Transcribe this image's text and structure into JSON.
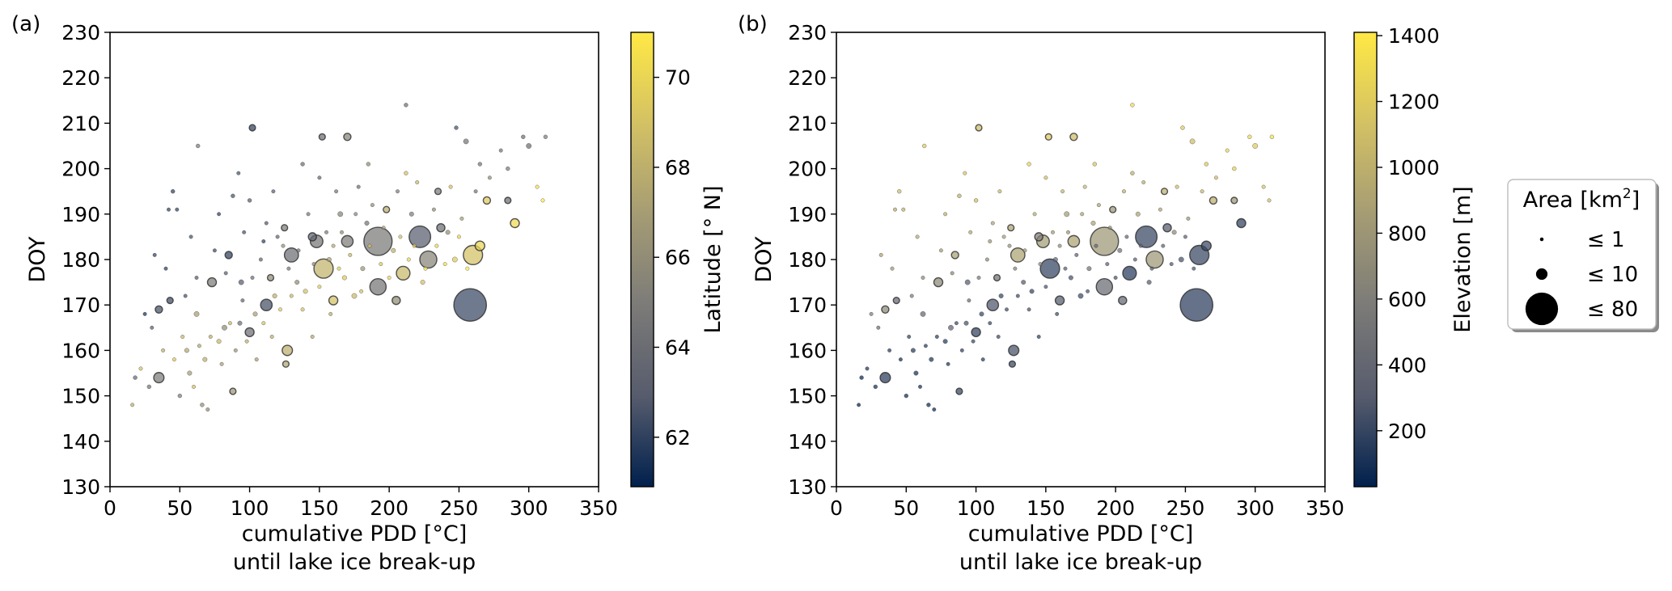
{
  "figure": {
    "legend": {
      "title_main": "Area [km",
      "title_sup": "2",
      "title_end": "]",
      "items": [
        {
          "label": "≤ 1",
          "area_km2": 1
        },
        {
          "label": "≤ 10",
          "area_km2": 10
        },
        {
          "label": "≤ 80",
          "area_km2": 80
        }
      ]
    }
  },
  "colors": {
    "cmap": [
      "#00204d",
      "#575c6d",
      "#7c7b78",
      "#a59c74",
      "#d3c164",
      "#ffe945"
    ],
    "point_alpha": 0.72,
    "edge": "#2b2b2b"
  },
  "chart_data": [
    {
      "panel_label": "(a)",
      "type": "scatter",
      "xlabel": "cumulative PDD [°C]",
      "xlabel2": "until lake ice break-up",
      "ylabel": "DOY",
      "xlim": [
        0,
        350
      ],
      "ylim": [
        130,
        230
      ],
      "xticks": [
        0,
        50,
        100,
        150,
        200,
        250,
        300,
        350
      ],
      "yticks": [
        130,
        140,
        150,
        160,
        170,
        180,
        190,
        200,
        210,
        220,
        230
      ],
      "color_variable": "lat",
      "colorbar": {
        "label": "Latitude [° N]",
        "min": 60.9,
        "max": 71,
        "ticks": [
          62,
          64,
          66,
          68,
          70
        ]
      },
      "grid": false
    },
    {
      "panel_label": "(b)",
      "type": "scatter",
      "xlabel": "cumulative PDD [°C]",
      "xlabel2": "until lake ice break-up",
      "ylabel": "DOY",
      "xlim": [
        0,
        350
      ],
      "ylim": [
        130,
        230
      ],
      "xticks": [
        0,
        50,
        100,
        150,
        200,
        250,
        300,
        350
      ],
      "yticks": [
        130,
        140,
        150,
        160,
        170,
        180,
        190,
        200,
        210,
        220,
        230
      ],
      "color_variable": "elev",
      "colorbar": {
        "label": "Elevation [m]",
        "min": 30,
        "max": 1410,
        "ticks": [
          200,
          400,
          600,
          800,
          1000,
          1200,
          1400
        ]
      },
      "grid": false
    }
  ],
  "points": [
    {
      "pdd": 258,
      "doy": 170,
      "area": 80,
      "lat": 62.2,
      "elev": 160
    },
    {
      "pdd": 192,
      "doy": 184,
      "area": 60,
      "lat": 64.8,
      "elev": 800
    },
    {
      "pdd": 222,
      "doy": 185,
      "area": 35,
      "lat": 63.0,
      "elev": 200
    },
    {
      "pdd": 153,
      "doy": 178,
      "area": 28,
      "lat": 68.2,
      "elev": 190
    },
    {
      "pdd": 260,
      "doy": 181,
      "area": 28,
      "lat": 69.0,
      "elev": 200
    },
    {
      "pdd": 228,
      "doy": 180,
      "area": 22,
      "lat": 65.5,
      "elev": 800
    },
    {
      "pdd": 192,
      "doy": 174,
      "area": 20,
      "lat": 64.5,
      "elev": 430
    },
    {
      "pdd": 130,
      "doy": 181,
      "area": 15,
      "lat": 64.0,
      "elev": 900
    },
    {
      "pdd": 210,
      "doy": 177,
      "area": 14,
      "lat": 68.5,
      "elev": 150
    },
    {
      "pdd": 148,
      "doy": 184,
      "area": 12,
      "lat": 64.6,
      "elev": 850
    },
    {
      "pdd": 170,
      "doy": 184,
      "area": 10,
      "lat": 65.0,
      "elev": 900
    },
    {
      "pdd": 112,
      "doy": 170,
      "area": 10,
      "lat": 62.5,
      "elev": 270
    },
    {
      "pdd": 35,
      "doy": 154,
      "area": 8,
      "lat": 65.0,
      "elev": 160
    },
    {
      "pdd": 127,
      "doy": 160,
      "area": 8,
      "lat": 68.0,
      "elev": 250
    },
    {
      "pdd": 265,
      "doy": 183,
      "area": 7,
      "lat": 70.0,
      "elev": 210
    },
    {
      "pdd": 73,
      "doy": 175,
      "area": 6,
      "lat": 65.0,
      "elev": 700
    },
    {
      "pdd": 290,
      "doy": 188,
      "area": 6,
      "lat": 70.2,
      "elev": 180
    },
    {
      "pdd": 100,
      "doy": 164,
      "area": 6,
      "lat": 64.0,
      "elev": 180
    },
    {
      "pdd": 160,
      "doy": 171,
      "area": 6,
      "lat": 69.0,
      "elev": 300
    },
    {
      "pdd": 205,
      "doy": 171,
      "area": 5,
      "lat": 66.0,
      "elev": 400
    },
    {
      "pdd": 145,
      "doy": 185,
      "area": 5,
      "lat": 63.5,
      "elev": 600
    },
    {
      "pdd": 237,
      "doy": 187,
      "area": 5,
      "lat": 64.0,
      "elev": 300
    },
    {
      "pdd": 85,
      "doy": 181,
      "area": 4,
      "lat": 62.0,
      "elev": 900
    },
    {
      "pdd": 35,
      "doy": 169,
      "area": 4,
      "lat": 62.5,
      "elev": 700
    },
    {
      "pdd": 43,
      "doy": 171,
      "area": 3,
      "lat": 62.3,
      "elev": 400
    },
    {
      "pdd": 102,
      "doy": 209,
      "area": 3,
      "lat": 62.0,
      "elev": 1100
    },
    {
      "pdd": 170,
      "doy": 207,
      "area": 4,
      "lat": 65.5,
      "elev": 1100
    },
    {
      "pdd": 152,
      "doy": 207,
      "area": 3,
      "lat": 64.0,
      "elev": 1200
    },
    {
      "pdd": 270,
      "doy": 193,
      "area": 4,
      "lat": 69.5,
      "elev": 1000
    },
    {
      "pdd": 285,
      "doy": 193,
      "area": 3,
      "lat": 64.0,
      "elev": 800
    },
    {
      "pdd": 125,
      "doy": 187,
      "area": 3,
      "lat": 65.0,
      "elev": 900
    },
    {
      "pdd": 88,
      "doy": 151,
      "area": 3,
      "lat": 66.5,
      "elev": 200
    },
    {
      "pdd": 126,
      "doy": 157,
      "area": 3,
      "lat": 67.5,
      "elev": 200
    },
    {
      "pdd": 235,
      "doy": 195,
      "area": 3,
      "lat": 65.0,
      "elev": 1000
    },
    {
      "pdd": 198,
      "doy": 191,
      "area": 3,
      "lat": 68.0,
      "elev": 800
    },
    {
      "pdd": 115,
      "doy": 176,
      "area": 3,
      "lat": 66.0,
      "elev": 500
    },
    {
      "pdd": 62,
      "doy": 168,
      "area": 2,
      "lat": 67.0,
      "elev": 400
    },
    {
      "pdd": 94,
      "doy": 175,
      "area": 2,
      "lat": 63.0,
      "elev": 300
    },
    {
      "pdd": 175,
      "doy": 172,
      "area": 2,
      "lat": 68.5,
      "elev": 220
    },
    {
      "pdd": 247,
      "doy": 180,
      "area": 2,
      "lat": 69.5,
      "elev": 250
    },
    {
      "pdd": 165,
      "doy": 190,
      "area": 2,
      "lat": 65.5,
      "elev": 850
    },
    {
      "pdd": 82,
      "doy": 165,
      "area": 2,
      "lat": 66.0,
      "elev": 350
    },
    {
      "pdd": 300,
      "doy": 205,
      "area": 2,
      "lat": 64.0,
      "elev": 1200
    },
    {
      "pdd": 255,
      "doy": 206,
      "area": 2,
      "lat": 64.5,
      "elev": 1100
    },
    {
      "pdd": 55,
      "doy": 160,
      "area": 1.5,
      "lat": 67.5,
      "elev": 150
    },
    {
      "pdd": 57,
      "doy": 155,
      "area": 1.5,
      "lat": 67.0,
      "elev": 100
    },
    {
      "pdd": 68,
      "doy": 158,
      "area": 1.5,
      "lat": 68.0,
      "elev": 120
    },
    {
      "pdd": 78,
      "doy": 162,
      "area": 1.5,
      "lat": 68.5,
      "elev": 150
    },
    {
      "pdd": 93,
      "doy": 166,
      "area": 1.5,
      "lat": 64.0,
      "elev": 250
    },
    {
      "pdd": 104,
      "doy": 168,
      "area": 1.5,
      "lat": 67.0,
      "elev": 200
    },
    {
      "pdd": 118,
      "doy": 172,
      "area": 1.5,
      "lat": 68.0,
      "elev": 200
    },
    {
      "pdd": 134,
      "doy": 175,
      "area": 1.5,
      "lat": 66.0,
      "elev": 300
    },
    {
      "pdd": 140,
      "doy": 173,
      "area": 1.5,
      "lat": 69.0,
      "elev": 200
    },
    {
      "pdd": 157,
      "doy": 180,
      "area": 1.5,
      "lat": 67.0,
      "elev": 400
    },
    {
      "pdd": 168,
      "doy": 176,
      "area": 1.5,
      "lat": 69.5,
      "elev": 250
    },
    {
      "pdd": 181,
      "doy": 178,
      "area": 1.5,
      "lat": 66.5,
      "elev": 500
    },
    {
      "pdd": 184,
      "doy": 188,
      "area": 1.5,
      "lat": 64.5,
      "elev": 900
    },
    {
      "pdd": 203,
      "doy": 182,
      "area": 1.5,
      "lat": 68.0,
      "elev": 500
    },
    {
      "pdd": 216,
      "doy": 190,
      "area": 1.5,
      "lat": 65.0,
      "elev": 900
    },
    {
      "pdd": 242,
      "doy": 186,
      "area": 1.5,
      "lat": 66.0,
      "elev": 700
    },
    {
      "pdd": 224,
      "doy": 175,
      "area": 1.5,
      "lat": 69.0,
      "elev": 300
    },
    {
      "pdd": 63,
      "doy": 205,
      "area": 1.2,
      "lat": 65.0,
      "elev": 1200
    },
    {
      "pdd": 138,
      "doy": 201,
      "area": 1.2,
      "lat": 64.0,
      "elev": 1250
    },
    {
      "pdd": 185,
      "doy": 201,
      "area": 1.2,
      "lat": 66.0,
      "elev": 1150
    },
    {
      "pdd": 212,
      "doy": 214,
      "area": 1.2,
      "lat": 64.0,
      "elev": 1300
    },
    {
      "pdd": 248,
      "doy": 209,
      "area": 1.2,
      "lat": 62.5,
      "elev": 1200
    },
    {
      "pdd": 212,
      "doy": 199,
      "area": 1.2,
      "lat": 69.0,
      "elev": 1000
    },
    {
      "pdd": 296,
      "doy": 207,
      "area": 1.2,
      "lat": 64.0,
      "elev": 1300
    },
    {
      "pdd": 312,
      "doy": 207,
      "area": 1.2,
      "lat": 65.0,
      "elev": 1350
    },
    {
      "pdd": 265,
      "doy": 201,
      "area": 1.2,
      "lat": 64.5,
      "elev": 1200
    },
    {
      "pdd": 285,
      "doy": 200,
      "area": 1.2,
      "lat": 65.0,
      "elev": 1250
    },
    {
      "pdd": 45,
      "doy": 195,
      "area": 1.2,
      "lat": 62.0,
      "elev": 1100
    },
    {
      "pdd": 88,
      "doy": 194,
      "area": 1.2,
      "lat": 62.5,
      "elev": 1000
    },
    {
      "pdd": 100,
      "doy": 193,
      "area": 1.2,
      "lat": 63.0,
      "elev": 1100
    },
    {
      "pdd": 18,
      "doy": 154,
      "area": 1.2,
      "lat": 63.5,
      "elev": 50
    },
    {
      "pdd": 28,
      "doy": 152,
      "area": 1.2,
      "lat": 64.5,
      "elev": 100
    },
    {
      "pdd": 50,
      "doy": 150,
      "area": 1.2,
      "lat": 65.0,
      "elev": 80
    },
    {
      "pdd": 66,
      "doy": 148,
      "area": 1.2,
      "lat": 66.0,
      "elev": 70
    },
    {
      "pdd": 16,
      "doy": 148,
      "area": 1.0,
      "lat": 68.0,
      "elev": 40
    },
    {
      "pdd": 25,
      "doy": 168,
      "area": 1.0,
      "lat": 61.5,
      "elev": 600
    },
    {
      "pdd": 32,
      "doy": 181,
      "area": 1.0,
      "lat": 62.0,
      "elev": 900
    },
    {
      "pdd": 40,
      "doy": 178,
      "area": 1.0,
      "lat": 61.8,
      "elev": 800
    },
    {
      "pdd": 48,
      "doy": 191,
      "area": 1.0,
      "lat": 62.0,
      "elev": 1000
    },
    {
      "pdd": 58,
      "doy": 185,
      "area": 1.0,
      "lat": 62.5,
      "elev": 950
    },
    {
      "pdd": 62,
      "doy": 176,
      "area": 1.0,
      "lat": 63.0,
      "elev": 700
    },
    {
      "pdd": 75,
      "doy": 182,
      "area": 1.0,
      "lat": 62.2,
      "elev": 850
    },
    {
      "pdd": 78,
      "doy": 190,
      "area": 1.0,
      "lat": 62.0,
      "elev": 1000
    },
    {
      "pdd": 96,
      "doy": 186,
      "area": 1.0,
      "lat": 62.5,
      "elev": 950
    },
    {
      "pdd": 108,
      "doy": 180,
      "area": 1.0,
      "lat": 63.5,
      "elev": 700
    },
    {
      "pdd": 112,
      "doy": 188,
      "area": 1.0,
      "lat": 62.8,
      "elev": 900
    },
    {
      "pdd": 120,
      "doy": 185,
      "area": 1.0,
      "lat": 63.5,
      "elev": 850
    },
    {
      "pdd": 135,
      "doy": 182,
      "area": 1.0,
      "lat": 64.0,
      "elev": 750
    },
    {
      "pdd": 142,
      "doy": 190,
      "area": 1.0,
      "lat": 64.5,
      "elev": 950
    },
    {
      "pdd": 155,
      "doy": 186,
      "area": 1.0,
      "lat": 65.0,
      "elev": 850
    },
    {
      "pdd": 162,
      "doy": 195,
      "area": 1.0,
      "lat": 64.5,
      "elev": 1050
    },
    {
      "pdd": 178,
      "doy": 196,
      "area": 1.0,
      "lat": 64.0,
      "elev": 1050
    },
    {
      "pdd": 188,
      "doy": 192,
      "area": 1.0,
      "lat": 66.0,
      "elev": 900
    },
    {
      "pdd": 196,
      "doy": 187,
      "area": 1.0,
      "lat": 67.0,
      "elev": 700
    },
    {
      "pdd": 206,
      "doy": 195,
      "area": 1.0,
      "lat": 65.0,
      "elev": 1000
    },
    {
      "pdd": 220,
      "doy": 197,
      "area": 1.0,
      "lat": 68.5,
      "elev": 1000
    },
    {
      "pdd": 232,
      "doy": 191,
      "area": 1.0,
      "lat": 66.0,
      "elev": 900
    },
    {
      "pdd": 244,
      "doy": 196,
      "area": 1.0,
      "lat": 69.0,
      "elev": 1100
    },
    {
      "pdd": 252,
      "doy": 189,
      "area": 1.0,
      "lat": 67.0,
      "elev": 800
    },
    {
      "pdd": 262,
      "doy": 195,
      "area": 1.0,
      "lat": 64.5,
      "elev": 1050
    },
    {
      "pdd": 272,
      "doy": 198,
      "area": 1.0,
      "lat": 66.0,
      "elev": 1100
    },
    {
      "pdd": 280,
      "doy": 204,
      "area": 1.0,
      "lat": 64.5,
      "elev": 1250
    },
    {
      "pdd": 306,
      "doy": 196,
      "area": 1.0,
      "lat": 70.5,
      "elev": 1150
    },
    {
      "pdd": 310,
      "doy": 193,
      "area": 1.0,
      "lat": 71.0,
      "elev": 1100
    },
    {
      "pdd": 22,
      "doy": 156,
      "area": 1.0,
      "lat": 69.0,
      "elev": 120
    },
    {
      "pdd": 38,
      "doy": 160,
      "area": 1.0,
      "lat": 68.0,
      "elev": 150
    },
    {
      "pdd": 46,
      "doy": 158,
      "area": 1.0,
      "lat": 69.5,
      "elev": 90
    },
    {
      "pdd": 52,
      "doy": 163,
      "area": 1.0,
      "lat": 68.5,
      "elev": 180
    },
    {
      "pdd": 60,
      "doy": 152,
      "area": 1.0,
      "lat": 69.0,
      "elev": 90
    },
    {
      "pdd": 64,
      "doy": 161,
      "area": 1.0,
      "lat": 67.5,
      "elev": 160
    },
    {
      "pdd": 70,
      "doy": 147,
      "area": 1.0,
      "lat": 66.0,
      "elev": 60
    },
    {
      "pdd": 72,
      "doy": 163,
      "area": 1.0,
      "lat": 68.0,
      "elev": 170
    },
    {
      "pdd": 80,
      "doy": 157,
      "area": 1.0,
      "lat": 67.0,
      "elev": 120
    },
    {
      "pdd": 86,
      "doy": 166,
      "area": 1.0,
      "lat": 68.5,
      "elev": 210
    },
    {
      "pdd": 90,
      "doy": 160,
      "area": 1.0,
      "lat": 66.5,
      "elev": 170
    },
    {
      "pdd": 98,
      "doy": 162,
      "area": 1.0,
      "lat": 68.0,
      "elev": 190
    },
    {
      "pdd": 105,
      "doy": 158,
      "area": 1.0,
      "lat": 67.0,
      "elev": 150
    },
    {
      "pdd": 110,
      "doy": 166,
      "area": 1.0,
      "lat": 69.0,
      "elev": 200
    },
    {
      "pdd": 116,
      "doy": 163,
      "area": 1.0,
      "lat": 68.0,
      "elev": 210
    },
    {
      "pdd": 122,
      "doy": 169,
      "area": 1.0,
      "lat": 69.5,
      "elev": 220
    },
    {
      "pdd": 130,
      "doy": 172,
      "area": 1.0,
      "lat": 68.5,
      "elev": 230
    },
    {
      "pdd": 138,
      "doy": 169,
      "area": 1.0,
      "lat": 69.0,
      "elev": 240
    },
    {
      "pdd": 145,
      "doy": 163,
      "area": 1.0,
      "lat": 67.5,
      "elev": 170
    },
    {
      "pdd": 150,
      "doy": 174,
      "area": 1.0,
      "lat": 69.5,
      "elev": 260
    },
    {
      "pdd": 158,
      "doy": 168,
      "area": 1.0,
      "lat": 68.0,
      "elev": 220
    },
    {
      "pdd": 164,
      "doy": 178,
      "area": 1.0,
      "lat": 69.5,
      "elev": 300
    },
    {
      "pdd": 172,
      "doy": 181,
      "area": 1.0,
      "lat": 68.5,
      "elev": 350
    },
    {
      "pdd": 180,
      "doy": 173,
      "area": 1.0,
      "lat": 69.0,
      "elev": 260
    },
    {
      "pdd": 186,
      "doy": 183,
      "area": 1.0,
      "lat": 69.0,
      "elev": 400
    },
    {
      "pdd": 194,
      "doy": 179,
      "area": 1.0,
      "lat": 69.5,
      "elev": 330
    },
    {
      "pdd": 200,
      "doy": 176,
      "area": 1.0,
      "lat": 70.0,
      "elev": 260
    },
    {
      "pdd": 208,
      "doy": 185,
      "area": 1.0,
      "lat": 69.0,
      "elev": 400
    },
    {
      "pdd": 214,
      "doy": 180,
      "area": 1.0,
      "lat": 70.0,
      "elev": 310
    },
    {
      "pdd": 218,
      "doy": 183,
      "area": 1.0,
      "lat": 69.5,
      "elev": 380
    },
    {
      "pdd": 226,
      "doy": 178,
      "area": 1.0,
      "lat": 70.5,
      "elev": 290
    },
    {
      "pdd": 234,
      "doy": 183,
      "area": 1.0,
      "lat": 70.0,
      "elev": 330
    },
    {
      "pdd": 240,
      "doy": 179,
      "area": 1.0,
      "lat": 70.5,
      "elev": 280
    },
    {
      "pdd": 250,
      "doy": 185,
      "area": 1.0,
      "lat": 70.0,
      "elev": 350
    },
    {
      "pdd": 256,
      "doy": 178,
      "area": 1.0,
      "lat": 71.0,
      "elev": 260
    },
    {
      "pdd": 95,
      "doy": 171,
      "area": 1.0,
      "lat": 63.5,
      "elev": 450
    },
    {
      "pdd": 102,
      "doy": 176,
      "area": 1.0,
      "lat": 64.0,
      "elev": 550
    },
    {
      "pdd": 128,
      "doy": 178,
      "area": 1.0,
      "lat": 64.5,
      "elev": 600
    },
    {
      "pdd": 146,
      "doy": 179,
      "area": 1.0,
      "lat": 65.5,
      "elev": 650
    },
    {
      "pdd": 166,
      "doy": 186,
      "area": 1.0,
      "lat": 66.0,
      "elev": 800
    },
    {
      "pdd": 176,
      "doy": 190,
      "area": 1.0,
      "lat": 65.5,
      "elev": 900
    },
    {
      "pdd": 83,
      "doy": 177,
      "area": 1.0,
      "lat": 63.0,
      "elev": 650
    },
    {
      "pdd": 54,
      "doy": 172,
      "area": 1.0,
      "lat": 62.5,
      "elev": 550
    },
    {
      "pdd": 30,
      "doy": 165,
      "area": 1.0,
      "lat": 63.0,
      "elev": 450
    },
    {
      "pdd": 42,
      "doy": 191,
      "area": 1.0,
      "lat": 62.0,
      "elev": 950
    },
    {
      "pdd": 117,
      "doy": 195,
      "area": 1.0,
      "lat": 63.0,
      "elev": 1050
    },
    {
      "pdd": 92,
      "doy": 199,
      "area": 1.0,
      "lat": 62.5,
      "elev": 1150
    },
    {
      "pdd": 150,
      "doy": 198,
      "area": 1.0,
      "lat": 63.5,
      "elev": 1100
    },
    {
      "pdd": 160,
      "doy": 183,
      "area": 1.0,
      "lat": 67.5,
      "elev": 700
    },
    {
      "pdd": 124,
      "doy": 183,
      "area": 1.0,
      "lat": 66.0,
      "elev": 750
    },
    {
      "pdd": 110,
      "doy": 184,
      "area": 1.0,
      "lat": 62.0,
      "elev": 800
    }
  ]
}
